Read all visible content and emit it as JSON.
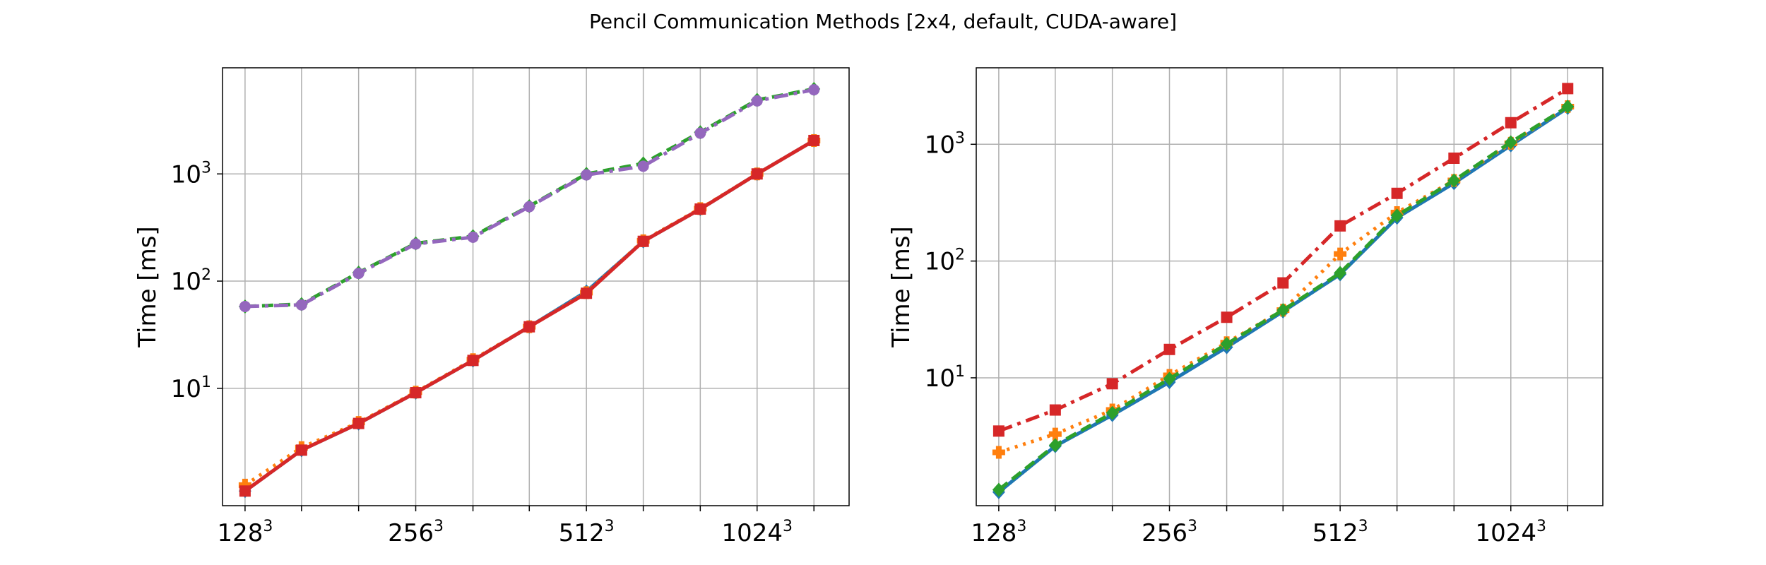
{
  "figure": {
    "title": "Pencil Communication Methods [2x4, default, CUDA-aware]"
  },
  "chart_data": [
    {
      "type": "line",
      "panel": "left",
      "ylabel": "Time [ms]",
      "yscale": "log",
      "grid": true,
      "x": [
        128,
        161,
        203,
        256,
        323,
        406,
        512,
        645,
        813,
        1024,
        1290
      ],
      "xticks": [
        {
          "value": 128,
          "base": "128",
          "exp": "3"
        },
        {
          "value": 256,
          "base": "256",
          "exp": "3"
        },
        {
          "value": 512,
          "base": "512",
          "exp": "3"
        },
        {
          "value": 1024,
          "base": "1024",
          "exp": "3"
        }
      ],
      "yticks": [
        {
          "value": 10,
          "base": "10",
          "exp": "1"
        },
        {
          "value": 100,
          "base": "10",
          "exp": "2"
        },
        {
          "value": 1000,
          "base": "10",
          "exp": "3"
        }
      ],
      "series": [
        {
          "color": "#1f77b4",
          "line": "solid",
          "marker": "diamond",
          "values": [
            1.1,
            2.65,
            4.7,
            9.1,
            18.2,
            37.5,
            80,
            235,
            470,
            1000,
            2050
          ]
        },
        {
          "color": "#ff7f0e",
          "line": "dotted",
          "marker": "cross",
          "values": [
            1.25,
            2.8,
            4.8,
            9.2,
            18.5,
            37.5,
            78,
            238,
            475,
            1000,
            2050
          ]
        },
        {
          "color": "#2ca02c",
          "line": "dashed",
          "marker": "diamond",
          "values": [
            58,
            61,
            120,
            225,
            262,
            500,
            1000,
            1250,
            2450,
            4900,
            6200
          ]
        },
        {
          "color": "#d62728",
          "line": "solid",
          "marker": "square",
          "values": [
            1.1,
            2.65,
            4.7,
            9.1,
            18.2,
            37.5,
            77,
            235,
            470,
            1000,
            2050
          ]
        },
        {
          "color": "#9467bd",
          "line": "dashdot",
          "marker": "circle",
          "values": [
            58,
            60,
            118,
            222,
            257,
            495,
            980,
            1180,
            2400,
            4800,
            6100
          ]
        }
      ]
    },
    {
      "type": "line",
      "panel": "right",
      "ylabel": "Time [ms]",
      "yscale": "log",
      "grid": true,
      "x": [
        128,
        161,
        203,
        256,
        323,
        406,
        512,
        645,
        813,
        1024,
        1290
      ],
      "xticks": [
        {
          "value": 128,
          "base": "128",
          "exp": "3"
        },
        {
          "value": 256,
          "base": "256",
          "exp": "3"
        },
        {
          "value": 512,
          "base": "512",
          "exp": "3"
        },
        {
          "value": 1024,
          "base": "1024",
          "exp": "3"
        }
      ],
      "yticks": [
        {
          "value": 10,
          "base": "10",
          "exp": "1"
        },
        {
          "value": 100,
          "base": "10",
          "exp": "2"
        },
        {
          "value": 1000,
          "base": "10",
          "exp": "3"
        }
      ],
      "series": [
        {
          "color": "#1f77b4",
          "line": "solid",
          "marker": "diamond",
          "values": [
            1.05,
            2.6,
            4.8,
            9.2,
            18.3,
            37,
            77,
            235,
            465,
            980,
            2050
          ]
        },
        {
          "color": "#ff7f0e",
          "line": "dotted",
          "marker": "cross",
          "values": [
            2.3,
            3.3,
            5.3,
            10.5,
            20,
            38,
            115,
            260,
            490,
            1020,
            2100
          ]
        },
        {
          "color": "#2ca02c",
          "line": "dashed",
          "marker": "diamond",
          "values": [
            1.1,
            2.65,
            5.0,
            9.8,
            19.5,
            38,
            79,
            245,
            490,
            1040,
            2100
          ]
        },
        {
          "color": "#d62728",
          "line": "dashdot",
          "marker": "square",
          "values": [
            3.5,
            5.3,
            8.9,
            17.5,
            33,
            65,
            200,
            380,
            760,
            1530,
            3000
          ]
        }
      ]
    }
  ]
}
